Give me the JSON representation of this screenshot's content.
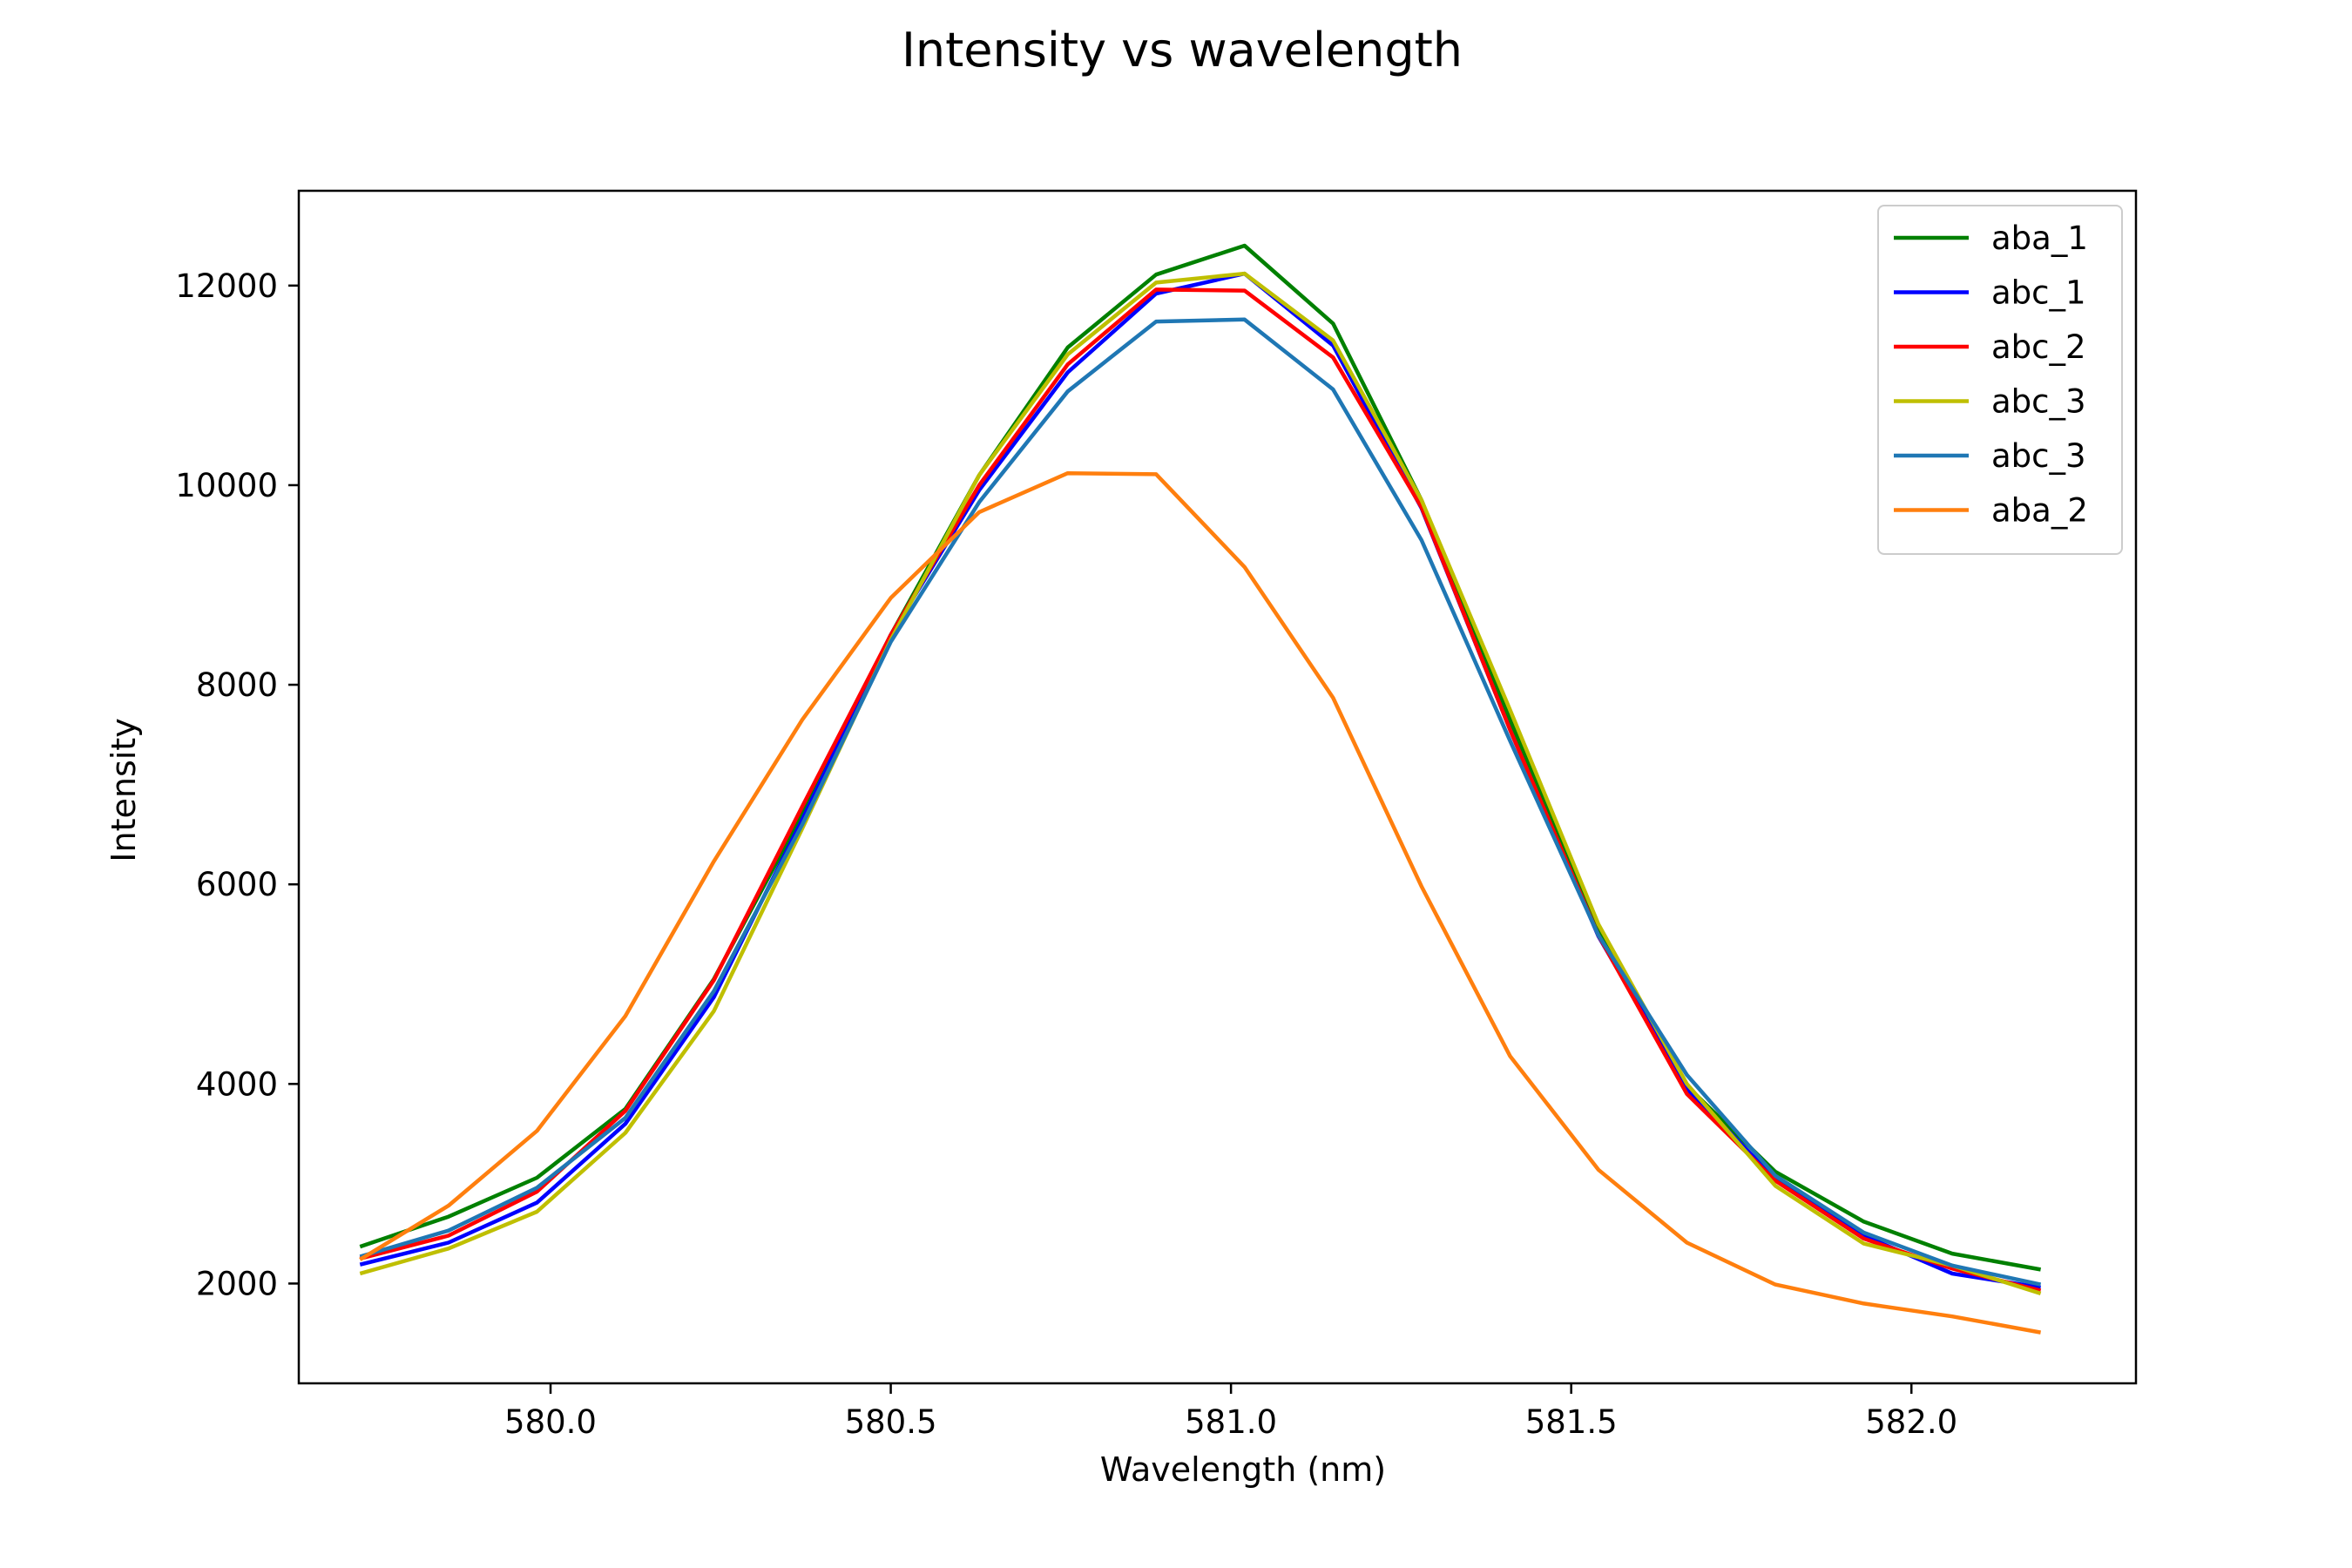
{
  "chart_data": {
    "type": "line",
    "title": "Intensity vs wavelength",
    "xlabel": "Wavelength (nm)",
    "ylabel": "Intensity",
    "xlim": [
      579.63,
      582.33
    ],
    "ylim": [
      1000,
      12950
    ],
    "xticks": [
      580.0,
      580.5,
      581.0,
      581.5,
      582.0
    ],
    "xtick_labels": [
      "580.0",
      "580.5",
      "581.0",
      "581.5",
      "582.0"
    ],
    "yticks": [
      2000,
      4000,
      6000,
      8000,
      10000,
      12000
    ],
    "ytick_labels": [
      "2000",
      "4000",
      "6000",
      "8000",
      "10000",
      "12000"
    ],
    "grid": false,
    "legend_position": "top-right",
    "x": [
      579.72,
      579.85,
      579.98,
      580.11,
      580.24,
      580.37,
      580.5,
      580.63,
      580.76,
      580.89,
      581.02,
      581.15,
      581.28,
      581.41,
      581.54,
      581.67,
      581.8,
      581.93,
      582.06,
      582.19
    ],
    "series": [
      {
        "name": "aba_1",
        "color": "#008000",
        "values": [
          2370,
          2670,
          3060,
          3750,
          5050,
          6700,
          8500,
          10100,
          11380,
          12110,
          12400,
          11620,
          9850,
          7650,
          5550,
          3980,
          3120,
          2620,
          2300,
          2140
        ]
      },
      {
        "name": "abc_1",
        "color": "#0000ff",
        "values": [
          2190,
          2410,
          2810,
          3600,
          4870,
          6650,
          8500,
          9950,
          11130,
          11920,
          12120,
          11400,
          9770,
          7550,
          5480,
          3950,
          3050,
          2480,
          2100,
          1960
        ]
      },
      {
        "name": "abc_2",
        "color": "#ff0000",
        "values": [
          2250,
          2480,
          2920,
          3730,
          5040,
          6780,
          8500,
          10000,
          11210,
          11960,
          11950,
          11280,
          9780,
          7550,
          5490,
          3900,
          3030,
          2450,
          2150,
          1930
        ]
      },
      {
        "name": "abc_3",
        "color": "#bfbf00",
        "values": [
          2100,
          2350,
          2720,
          3510,
          4730,
          6560,
          8450,
          10100,
          11310,
          12030,
          12120,
          11450,
          9850,
          7750,
          5600,
          4000,
          2980,
          2400,
          2180,
          1900
        ]
      },
      {
        "name": "abc_3",
        "color": "#1f77b4",
        "values": [
          2270,
          2530,
          2960,
          3660,
          4930,
          6600,
          8430,
          9830,
          10940,
          11640,
          11660,
          10960,
          9450,
          7440,
          5490,
          4090,
          3080,
          2510,
          2180,
          1990
        ]
      },
      {
        "name": "aba_2",
        "color": "#ff7f0e",
        "values": [
          2240,
          2780,
          3530,
          4680,
          6230,
          7650,
          8870,
          9730,
          10120,
          10110,
          9180,
          7870,
          5980,
          4280,
          3140,
          2410,
          1990,
          1800,
          1670,
          1510
        ]
      }
    ]
  }
}
